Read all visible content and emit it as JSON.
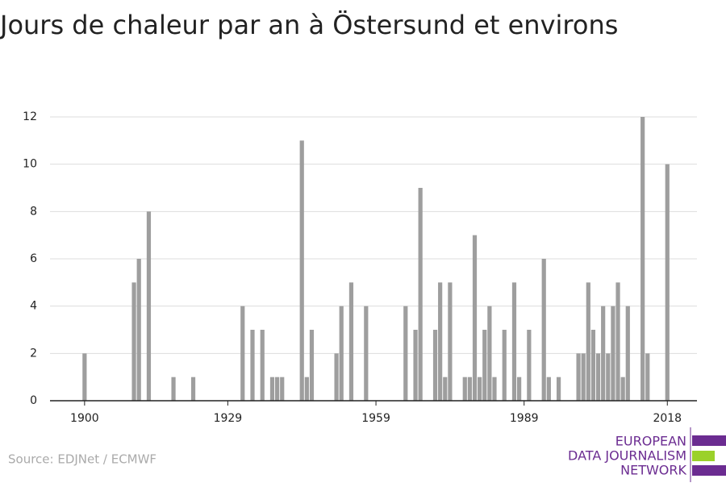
{
  "chart_data": {
    "type": "bar",
    "title": "Jours de chaleur par an à Östersund et environs",
    "x": [
      1900,
      1910,
      1911,
      1913,
      1918,
      1922,
      1932,
      1934,
      1936,
      1938,
      1939,
      1940,
      1944,
      1945,
      1946,
      1951,
      1952,
      1954,
      1957,
      1965,
      1967,
      1968,
      1971,
      1972,
      1973,
      1974,
      1977,
      1978,
      1979,
      1980,
      1981,
      1982,
      1983,
      1985,
      1987,
      1988,
      1990,
      1993,
      1994,
      1996,
      2000,
      2001,
      2002,
      2003,
      2004,
      2005,
      2006,
      2007,
      2008,
      2009,
      2010,
      2013,
      2014,
      2018
    ],
    "values": [
      2,
      5,
      6,
      8,
      1,
      1,
      4,
      3,
      3,
      1,
      1,
      1,
      11,
      1,
      3,
      2,
      4,
      5,
      4,
      4,
      3,
      9,
      3,
      5,
      1,
      5,
      1,
      1,
      7,
      1,
      3,
      4,
      1,
      3,
      5,
      1,
      3,
      6,
      1,
      1,
      2,
      2,
      5,
      3,
      2,
      4,
      2,
      4,
      5,
      1,
      4,
      12,
      2,
      10
    ],
    "color": "#9e9e9e",
    "xlim": [
      1893,
      2024
    ],
    "xticks": [
      1900,
      1929,
      1959,
      1989,
      2018
    ],
    "ylim": [
      0,
      12
    ],
    "yticks": [
      0,
      2,
      4,
      6,
      8,
      10,
      12
    ],
    "grid": true
  },
  "source": "Source: EDJNet / ECMWF",
  "logo": {
    "lines": [
      "EUROPEAN",
      "DATA JOURNALISM",
      "NETWORK"
    ]
  }
}
